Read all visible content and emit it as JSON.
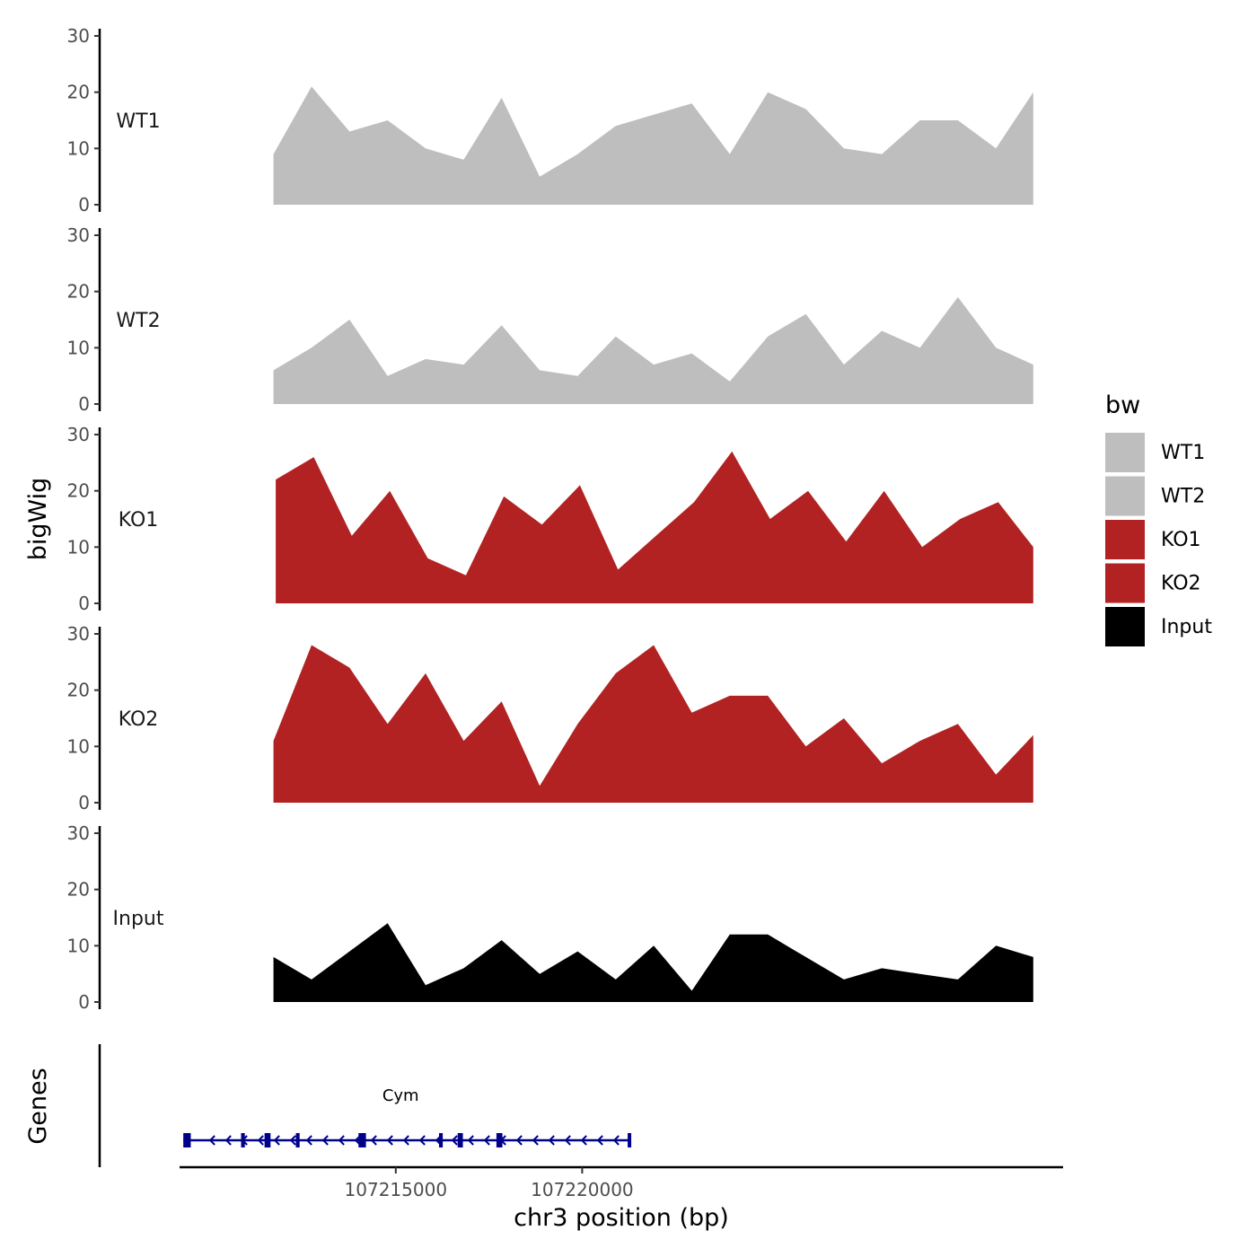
{
  "chart_data": {
    "type": "area",
    "xlabel": "chr3 position (bp)",
    "ylabel": "bigWig",
    "genes_label": "Genes",
    "xlim": [
      107209200,
      107232900
    ],
    "x_ticks": [
      107215000,
      107220000
    ],
    "x_tick_labels": [
      "107215000",
      "107220000"
    ],
    "ylim": [
      0,
      30
    ],
    "y_ticks": [
      0,
      10,
      20,
      30
    ],
    "y_tick_labels": [
      "0",
      "10",
      "20",
      "30"
    ],
    "legend": {
      "title": "bw",
      "entries": [
        {
          "label": "WT1",
          "color": "#bebebe"
        },
        {
          "label": "WT2",
          "color": "#bebebe"
        },
        {
          "label": "KO1",
          "color": "#b22222"
        },
        {
          "label": "KO2",
          "color": "#b22222"
        },
        {
          "label": "Input",
          "color": "#000000"
        }
      ]
    },
    "series": [
      {
        "name": "WT1",
        "color": "#bebebe",
        "x": [
          107211720,
          107212740,
          107213760,
          107214780,
          107215800,
          107216820,
          107217840,
          107218860,
          107219880,
          107220900,
          107221920,
          107222940,
          107223960,
          107224980,
          107226000,
          107227020,
          107228040,
          107229060,
          107230080,
          107231100,
          107232100
        ],
        "values": [
          9,
          21,
          13,
          15,
          10,
          8,
          19,
          5,
          9,
          14,
          16,
          18,
          9,
          20,
          17,
          10,
          9,
          15,
          15,
          10,
          20
        ]
      },
      {
        "name": "WT2",
        "color": "#bebebe",
        "x": [
          107211720,
          107212740,
          107213760,
          107214780,
          107215800,
          107216820,
          107217840,
          107218860,
          107219880,
          107220900,
          107221920,
          107222940,
          107223960,
          107224980,
          107226000,
          107227020,
          107228040,
          107229060,
          107230080,
          107231100,
          107232100
        ],
        "values": [
          6,
          10,
          15,
          5,
          8,
          7,
          14,
          6,
          5,
          12,
          7,
          9,
          4,
          12,
          16,
          7,
          13,
          10,
          19,
          10,
          7
        ]
      },
      {
        "name": "KO1",
        "color": "#b22222",
        "x": [
          107211780,
          107212800,
          107213820,
          107214840,
          107215860,
          107216880,
          107217900,
          107218920,
          107219940,
          107220960,
          107221980,
          107223000,
          107224020,
          107225040,
          107226060,
          107227080,
          107228100,
          107229120,
          107230140,
          107231160,
          107232100
        ],
        "values": [
          22,
          26,
          12,
          20,
          8,
          5,
          19,
          14,
          21,
          6,
          12,
          18,
          27,
          15,
          20,
          11,
          20,
          10,
          15,
          18,
          10
        ]
      },
      {
        "name": "KO2",
        "color": "#b22222",
        "x": [
          107211720,
          107212740,
          107213760,
          107214780,
          107215800,
          107216820,
          107217840,
          107218860,
          107219880,
          107220900,
          107221920,
          107222940,
          107223960,
          107224980,
          107226000,
          107227020,
          107228040,
          107229060,
          107230080,
          107231100,
          107232100
        ],
        "values": [
          11,
          28,
          24,
          14,
          23,
          11,
          18,
          3,
          14,
          23,
          28,
          16,
          19,
          19,
          10,
          15,
          7,
          11,
          14,
          5,
          12
        ]
      },
      {
        "name": "Input",
        "color": "#000000",
        "x": [
          107211720,
          107212740,
          107213760,
          107214780,
          107215800,
          107216820,
          107217840,
          107218860,
          107219880,
          107220900,
          107221920,
          107222940,
          107223960,
          107224980,
          107226000,
          107227020,
          107228040,
          107229060,
          107230080,
          107231100,
          107232100
        ],
        "values": [
          8,
          4,
          9,
          14,
          3,
          6,
          11,
          5,
          9,
          4,
          10,
          2,
          12,
          12,
          8,
          4,
          6,
          5,
          4,
          10,
          8
        ]
      }
    ],
    "gene_track": {
      "gene_name": "Cym",
      "strand": "-",
      "start": 107209300,
      "end": 107221300,
      "exons": [
        [
          107209300,
          107209500
        ],
        [
          107210850,
          107210950
        ],
        [
          107211480,
          107211640
        ],
        [
          107212320,
          107212420
        ],
        [
          107214000,
          107214200
        ],
        [
          107216160,
          107216260
        ],
        [
          107216660,
          107216800
        ],
        [
          107217700,
          107217860
        ],
        [
          107221220,
          107221300
        ]
      ],
      "color": "#00008b"
    }
  }
}
